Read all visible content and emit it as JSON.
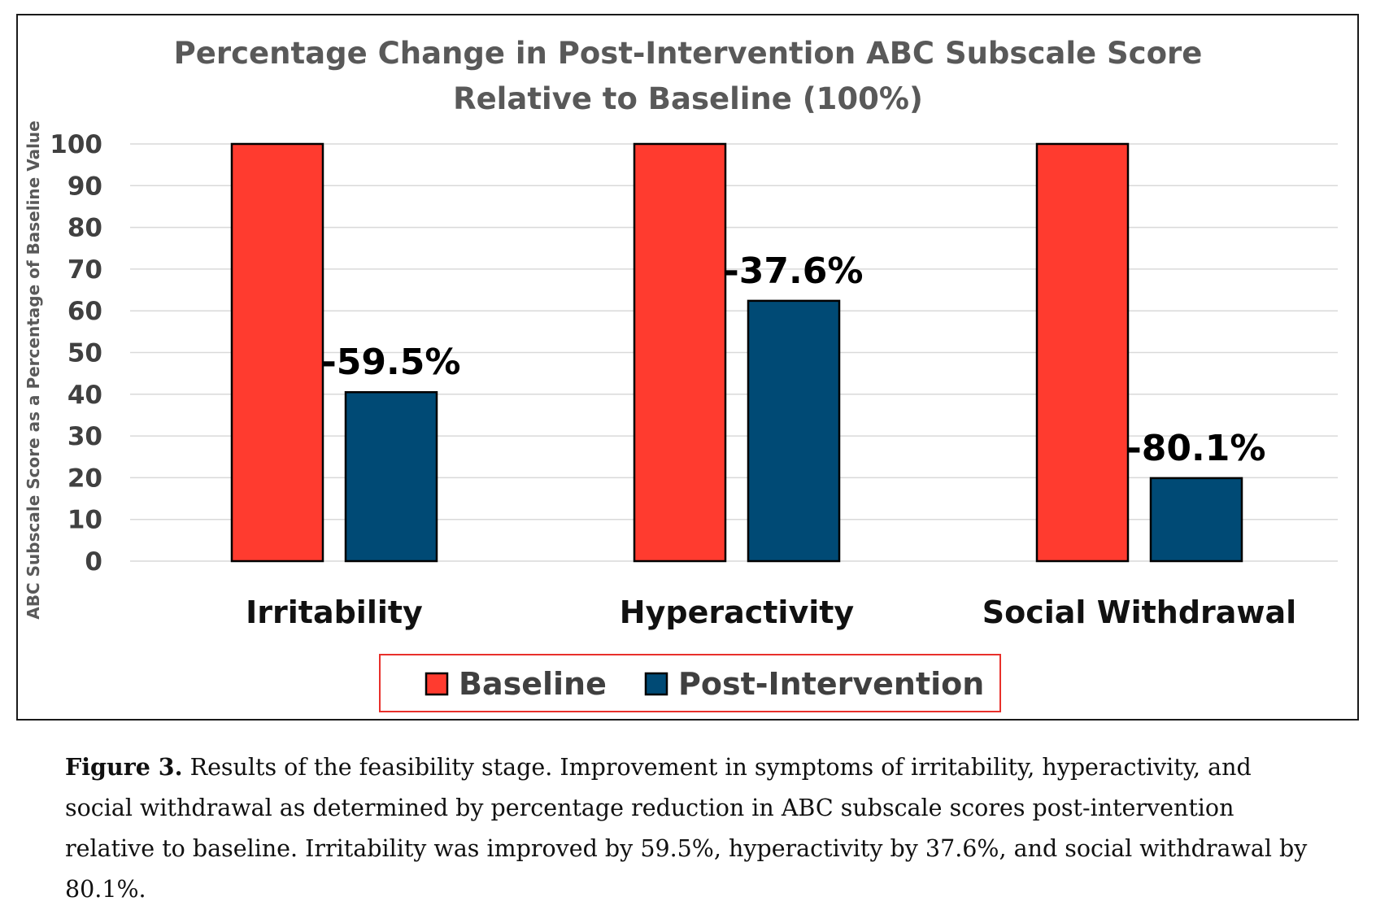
{
  "chart_data": {
    "type": "bar",
    "title_lines": [
      "Percentage Change in Post-Intervention ABC Subscale Score",
      "Relative to Baseline (100%)"
    ],
    "categories": [
      "Irritability",
      "Hyperactivity",
      "Social Withdrawal"
    ],
    "series": [
      {
        "name": "Baseline",
        "color": "#ff3b2f",
        "values": [
          100,
          100,
          100
        ]
      },
      {
        "name": "Post-Intervention",
        "color": "#004a75",
        "values": [
          40.5,
          62.4,
          19.9
        ]
      }
    ],
    "data_labels": [
      "-59.5%",
      "-37.6%",
      "-80.1%"
    ],
    "ylabel": "ABC Subscale Score as a Percentage of Baseline Value",
    "xlabel": "",
    "ylim": [
      0,
      100
    ],
    "yticks": [
      0,
      10,
      20,
      30,
      40,
      50,
      60,
      70,
      80,
      90,
      100
    ],
    "grid": true,
    "legend_position": "bottom",
    "legend_border_color": "#e8302b",
    "gridline_color": "#d9d9d9",
    "bar_outline_color": "#000000"
  },
  "caption": {
    "label": "Figure 3.",
    "text": "Results of the feasibility stage. Improvement in symptoms of irritability, hyperactivity, and social withdrawal as determined by percentage reduction in ABC subscale scores post-intervention relative to baseline. Irritability was improved by 59.5%, hyperactivity by 37.6%, and social withdrawal by 80.1%."
  }
}
